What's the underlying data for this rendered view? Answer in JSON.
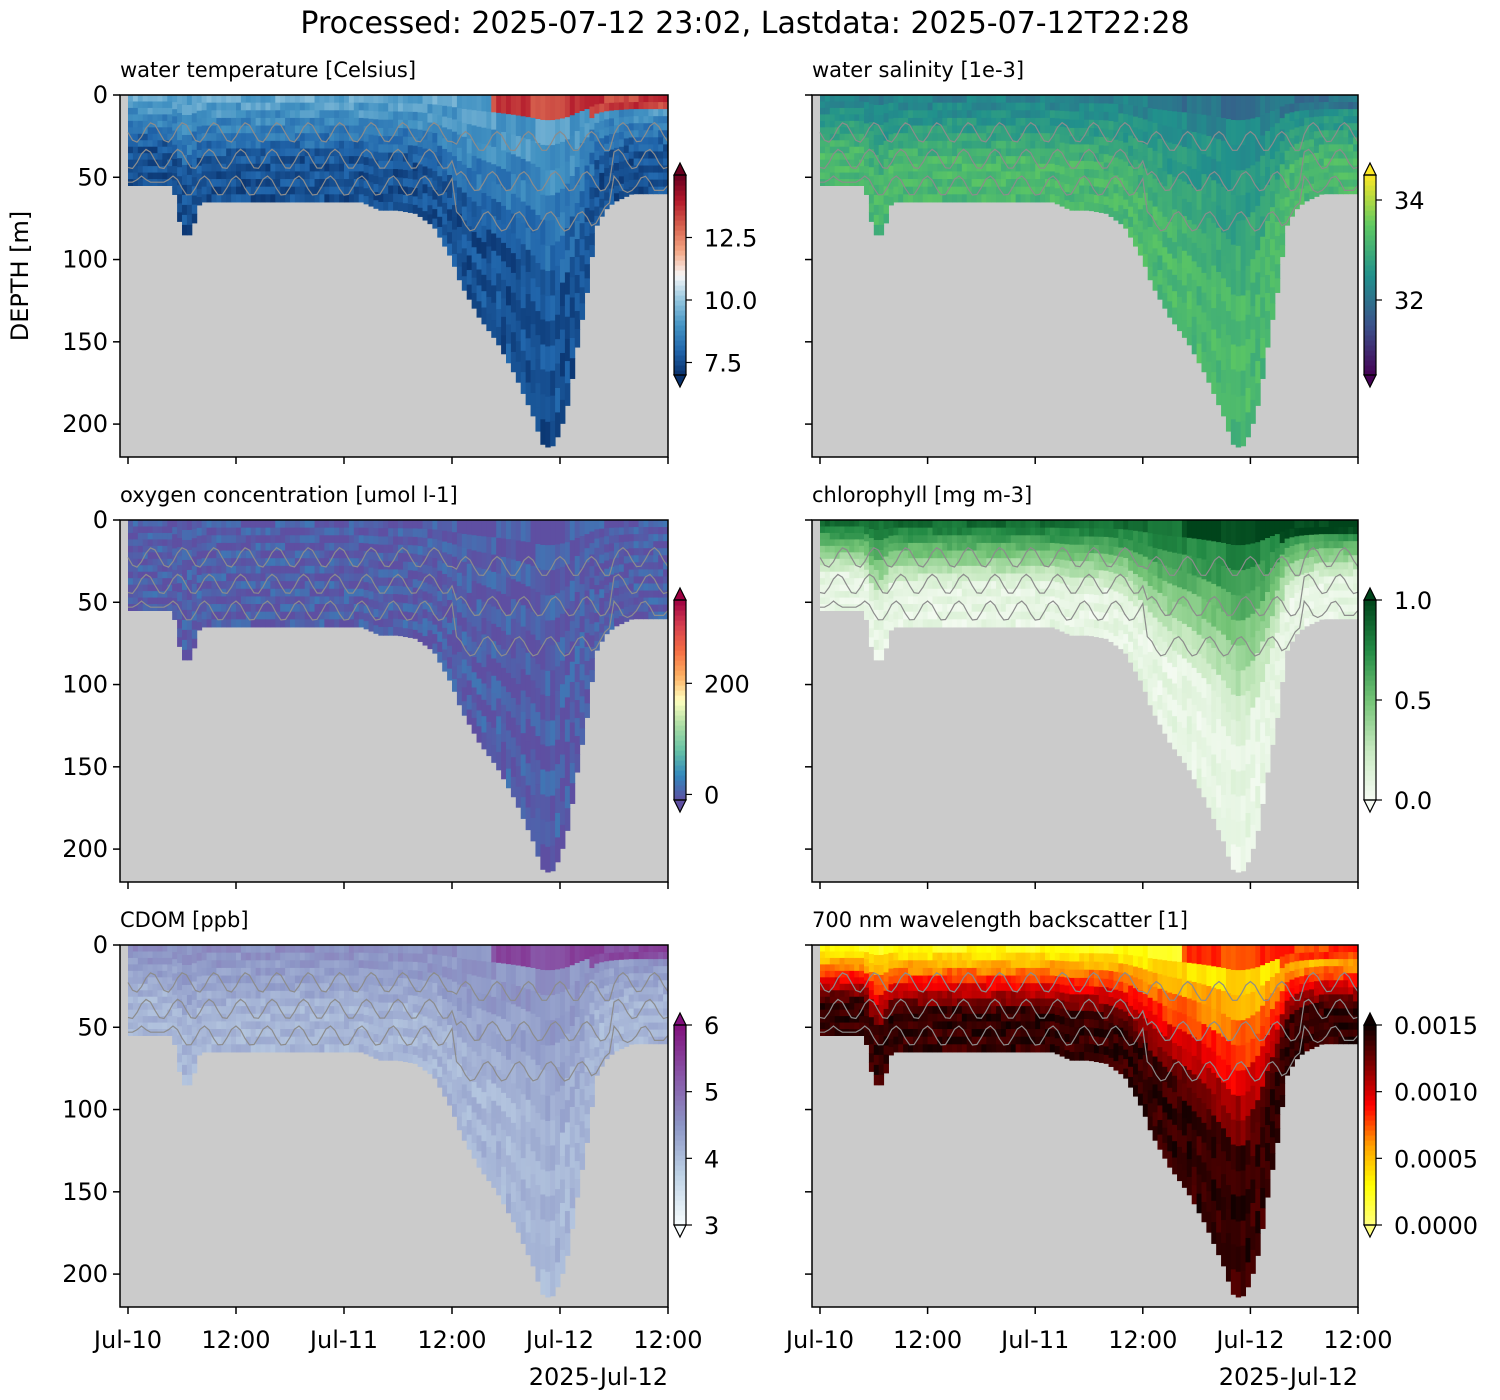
{
  "figure_title": "Processed: 2025-07-12 23:02, Lastdata: 2025-07-12T22:28",
  "shared": {
    "y_label": "DEPTH [m]",
    "y_ticks": [
      0,
      50,
      100,
      150,
      200
    ],
    "ylim": [
      220,
      0
    ],
    "x_ticks": [
      "Jul-10",
      "12:00",
      "Jul-11",
      "12:00",
      "Jul-12",
      "12:00"
    ],
    "x_offset_label": "2025-Jul-12",
    "no_data_color": "#cbcbcb",
    "contour_color": "#8c8c8c",
    "bottom_profile_hours": [
      0,
      1,
      3,
      5,
      6,
      6.5,
      7,
      8,
      10,
      13,
      14,
      15,
      16,
      18,
      20,
      22,
      24,
      26,
      28,
      30,
      32,
      34,
      36,
      37,
      39,
      41,
      43,
      45,
      46,
      47,
      48,
      49,
      50,
      51,
      52,
      53,
      54,
      56,
      58,
      60
    ],
    "bottom_profile_depth": [
      55,
      55,
      55,
      55,
      85,
      85,
      85,
      65,
      65,
      65,
      65,
      65,
      65,
      65,
      65,
      65,
      65,
      65,
      70,
      70,
      72,
      80,
      100,
      115,
      135,
      150,
      170,
      195,
      212,
      215,
      205,
      185,
      150,
      120,
      80,
      70,
      65,
      60,
      60,
      60
    ]
  },
  "chart_data": [
    {
      "type": "heatmap",
      "title": "water temperature [Celsius]",
      "colorbar_ticks": [
        "7.5",
        "10.0",
        "12.5"
      ],
      "clim": [
        7,
        15
      ],
      "colors": [
        "#08306b",
        "#2166ac",
        "#4393c3",
        "#92c5de",
        "#f7f7f7",
        "#f4a582",
        "#d6604d",
        "#b2182b",
        "#67001f"
      ],
      "surface_value": 9.5,
      "deep_value": 7.6,
      "surface_hot_value": 13.5
    },
    {
      "type": "heatmap",
      "title": "water salinity [1e-3]",
      "colorbar_ticks": [
        "32",
        "34"
      ],
      "clim": [
        30.5,
        34.5
      ],
      "colors": [
        "#440154",
        "#3b528b",
        "#21918c",
        "#5ec962",
        "#fde725"
      ],
      "surface_value": 32.2,
      "deep_value": 33.2,
      "surface_hot_value": 32.0
    },
    {
      "type": "heatmap",
      "title": "oxygen concentration [umol l-1]",
      "colorbar_ticks": [
        "0",
        "200"
      ],
      "clim": [
        -10,
        350
      ],
      "colors": [
        "#5e4fa2",
        "#3288bd",
        "#66c2a5",
        "#abdda4",
        "#ffffbf",
        "#fdae61",
        "#f46d43",
        "#d53e4f",
        "#9e0142"
      ],
      "surface_value": 0,
      "deep_value": 0,
      "surface_hot_value": 0
    },
    {
      "type": "heatmap",
      "title": "chlorophyll [mg m-3]",
      "colorbar_ticks": [
        "0.0",
        "0.5",
        "1.0"
      ],
      "clim": [
        0,
        1
      ],
      "colors": [
        "#f7fcf5",
        "#c7e9c0",
        "#74c476",
        "#238b45",
        "#00441b"
      ],
      "surface_value": 0.9,
      "deep_value": 0.08,
      "surface_hot_value": 1.0
    },
    {
      "type": "heatmap",
      "title": "CDOM [ppb]",
      "colorbar_ticks": [
        "3",
        "4",
        "5",
        "6"
      ],
      "clim": [
        3,
        6
      ],
      "colors": [
        "#f7fcfd",
        "#bfd3e6",
        "#8c96c6",
        "#8856a7",
        "#810f7c"
      ],
      "surface_value": 4.6,
      "deep_value": 4.1,
      "surface_hot_value": 5.4
    },
    {
      "type": "heatmap",
      "title": "700 nm wavelength backscatter [1]",
      "colorbar_ticks": [
        "0.0000",
        "0.0005",
        "0.0010",
        "0.0015"
      ],
      "clim": [
        0,
        0.0015
      ],
      "colors": [
        "#ffff80",
        "#ffff00",
        "#ffa000",
        "#ff0000",
        "#800000",
        "#0d0000"
      ],
      "surface_value": 0.0002,
      "deep_value": 0.0014,
      "surface_hot_value": 0.0008
    }
  ]
}
